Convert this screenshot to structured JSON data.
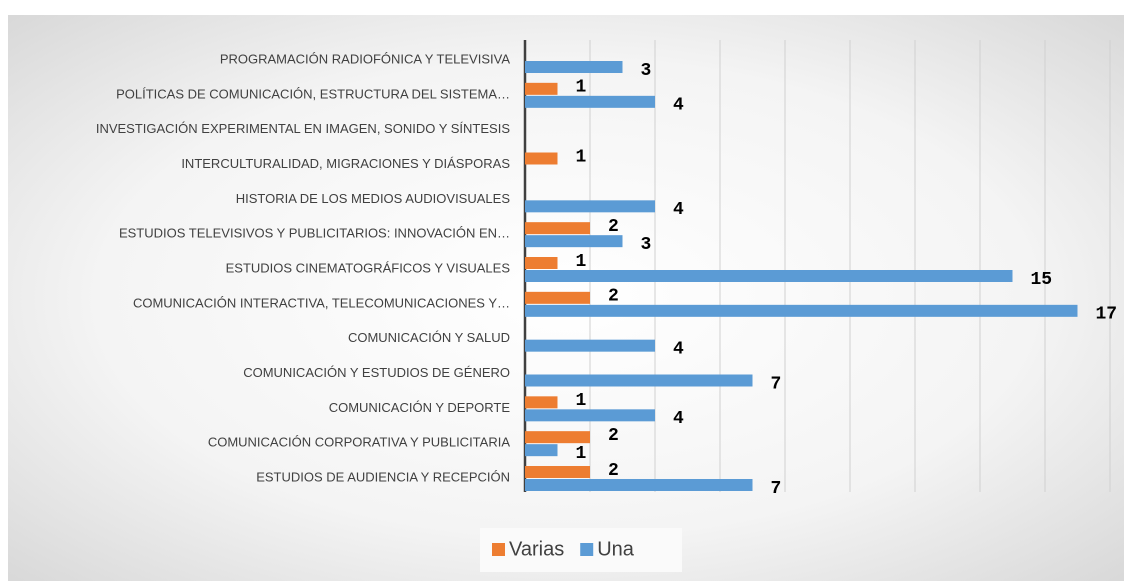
{
  "chart_data": {
    "type": "bar",
    "orientation": "horizontal",
    "categories": [
      "PROGRAMACIÓN RADIOFÓNICA Y TELEVISIVA",
      "POLÍTICAS DE COMUNICACIÓN, ESTRUCTURA DEL SISTEMA…",
      "INVESTIGACIÓN EXPERIMENTAL EN IMAGEN, SONIDO Y SÍNTESIS",
      "INTERCULTURALIDAD, MIGRACIONES Y DIÁSPORAS",
      "HISTORIA DE LOS MEDIOS AUDIOVISUALES",
      "ESTUDIOS TELEVISIVOS Y PUBLICITARIOS: INNOVACIÓN EN…",
      "ESTUDIOS CINEMATOGRÁFICOS Y VISUALES",
      "COMUNICACIÓN INTERACTIVA, TELECOMUNICACIONES Y…",
      "COMUNICACIÓN Y SALUD",
      "COMUNICACIÓN Y ESTUDIOS DE GÉNERO",
      "COMUNICACIÓN Y DEPORTE",
      "COMUNICACIÓN CORPORATIVA Y PUBLICITARIA",
      "ESTUDIOS DE AUDIENCIA Y RECEPCIÓN"
    ],
    "series": [
      {
        "name": "Varias",
        "color": "#ed7d31",
        "values": [
          null,
          1,
          null,
          1,
          null,
          2,
          1,
          2,
          null,
          null,
          1,
          2,
          2
        ]
      },
      {
        "name": "Una",
        "color": "#5b9bd5",
        "values": [
          3,
          4,
          null,
          null,
          4,
          3,
          15,
          17,
          4,
          7,
          4,
          1,
          7
        ]
      }
    ],
    "xlim": [
      0,
      18
    ],
    "xticks": [
      0,
      2,
      4,
      6,
      8,
      10,
      12,
      14,
      16,
      18
    ],
    "grid": true,
    "legend": "bottom"
  }
}
